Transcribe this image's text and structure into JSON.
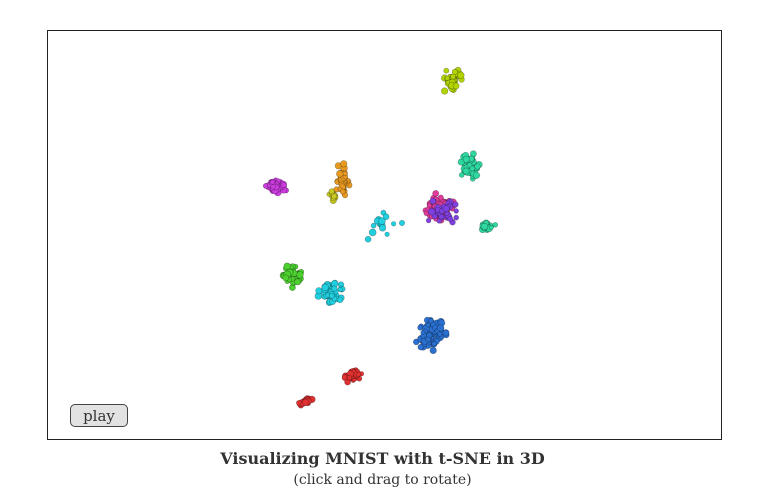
{
  "button": {
    "label": "play"
  },
  "caption": {
    "title": "Visualizing MNIST with t-SNE in 3D",
    "subtitle": "(click and drag to rotate)"
  }
}
